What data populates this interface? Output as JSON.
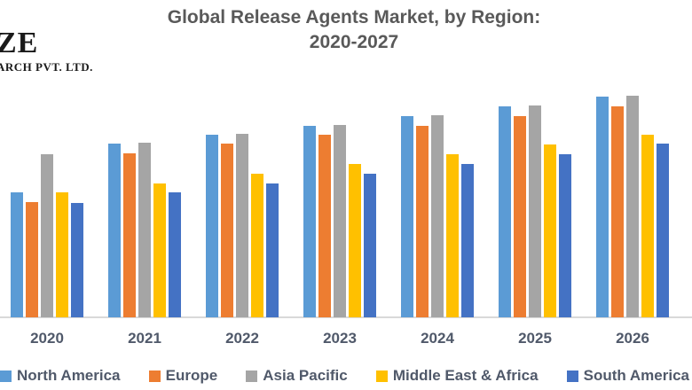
{
  "logo": {
    "line1": "ZE",
    "line2": "ARCH PVT. LTD."
  },
  "title": {
    "line1": "Global Release Agents Market, by Region:",
    "line2": "2020-2027"
  },
  "colors": {
    "title_text": "#595959",
    "axis_label_text": "#50596a",
    "axis_line": "#d9d9d9",
    "north_america": "#5B9BD5",
    "europe": "#ED7D31",
    "asia_pacific": "#A5A5A5",
    "middle_east_africa": "#FFC000",
    "south_america": "#4472C4"
  },
  "chart_data": {
    "type": "bar",
    "title": "Global Release Agents Market, by Region: 2020-2027",
    "xlabel": "",
    "ylabel": "",
    "categories": [
      "2020",
      "2021",
      "2022",
      "2023",
      "2024",
      "2025",
      "2026"
    ],
    "series": [
      {
        "name": "North America",
        "color": "#5B9BD5",
        "values": [
          141,
          196,
          206,
          216,
          227,
          238,
          249
        ]
      },
      {
        "name": "Europe",
        "color": "#ED7D31",
        "values": [
          130,
          185,
          196,
          206,
          216,
          227,
          238
        ]
      },
      {
        "name": "Asia Pacific",
        "color": "#A5A5A5",
        "values": [
          184,
          197,
          207,
          217,
          228,
          239,
          250
        ]
      },
      {
        "name": "Middle East & Africa",
        "color": "#FFC000",
        "values": [
          141,
          151,
          162,
          173,
          184,
          195,
          206
        ]
      },
      {
        "name": "South America",
        "color": "#4472C4",
        "values": [
          129,
          141,
          151,
          162,
          173,
          184,
          196
        ]
      }
    ],
    "value_unit": "relative bar height in pixels (no value axis shown in chart)",
    "ylim": [
      0,
      258
    ],
    "grid": false,
    "value_axis_visible": false,
    "legend_position": "bottom"
  }
}
